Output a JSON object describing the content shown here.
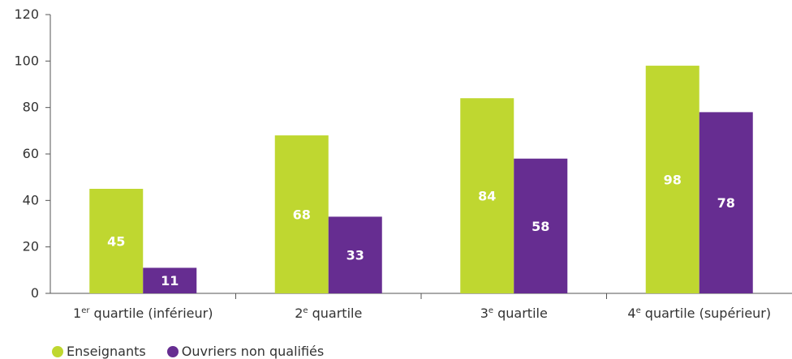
{
  "chart_data": {
    "type": "bar",
    "categories": [
      {
        "main": "1",
        "sup": "er",
        "rest": " quartile (inférieur)"
      },
      {
        "main": "2",
        "sup": "e",
        "rest": " quartile"
      },
      {
        "main": "3",
        "sup": "e",
        "rest": " quartile"
      },
      {
        "main": "4",
        "sup": "e",
        "rest": " quartile (supérieur)"
      }
    ],
    "series": [
      {
        "name": "Enseignants",
        "color": "#bfd730",
        "values": [
          45,
          68,
          84,
          98
        ]
      },
      {
        "name": "Ouvriers non qualifiés",
        "color": "#662d91",
        "values": [
          11,
          33,
          58,
          78
        ]
      }
    ],
    "ylim": [
      0,
      120
    ],
    "yticks": [
      "0",
      "20",
      "40",
      "60",
      "80",
      "100",
      "120"
    ],
    "grid": false,
    "legend_position": "bottom-left"
  }
}
